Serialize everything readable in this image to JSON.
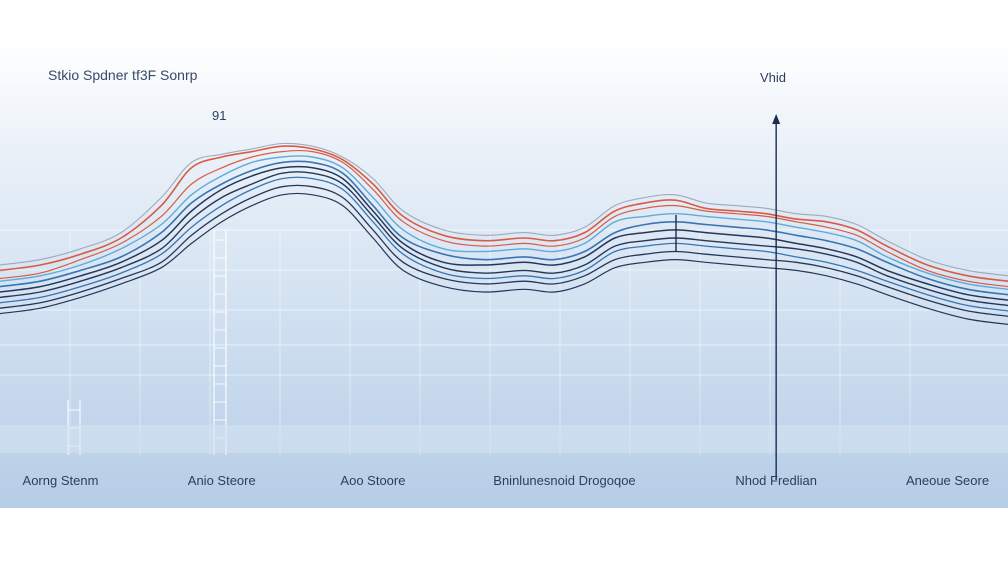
{
  "chart_data": {
    "type": "line",
    "title": "Stkio Spdner tf3F Sonrp",
    "xlabel": "",
    "ylabel": "",
    "peak_annotation": "91",
    "marker_annotation": "Vhid",
    "marker_x": 77,
    "categories": [
      {
        "label": "Aorng Stenm",
        "x": 6
      },
      {
        "label": "Anio Steore",
        "x": 22
      },
      {
        "label": "Aoo Stoore",
        "x": 37
      },
      {
        "label": "Bninlunesnoid Drogoqoe",
        "x": 56
      },
      {
        "label": "Nhod Fredlian",
        "x": 77
      },
      {
        "label": "Aneoue Seore",
        "x": 94
      }
    ],
    "xlim": [
      0,
      100
    ],
    "ylim": [
      0,
      100
    ],
    "grid": true,
    "legend": "none",
    "colors": {
      "red": "#d9533a",
      "blue": "#2f6fb0",
      "navy": "#1b2d4f",
      "light_blue": "#58a8d8",
      "gray": "#9aa6b8"
    },
    "x": [
      0,
      4,
      8,
      12,
      16,
      19,
      22,
      25,
      28,
      31,
      34,
      37,
      40,
      44,
      48,
      52,
      55,
      58,
      61,
      64,
      67,
      70,
      73,
      76,
      79,
      82,
      85,
      88,
      92,
      96,
      100
    ],
    "series": [
      {
        "color": "red",
        "width": 1.6,
        "values": [
          48,
          50,
          54,
          60,
          72,
          86,
          90,
          92,
          94,
          93,
          89,
          80,
          68,
          61,
          59,
          60,
          59,
          62,
          70,
          73,
          74,
          71,
          70,
          69,
          67,
          66,
          63,
          57,
          50,
          46,
          44
        ]
      },
      {
        "color": "red",
        "width": 1.2,
        "values": [
          45,
          47,
          52,
          58,
          68,
          80,
          86,
          90,
          92,
          92,
          88,
          78,
          66,
          59,
          57,
          58,
          57,
          60,
          68,
          71,
          72,
          70,
          69,
          68,
          66,
          64,
          61,
          55,
          48,
          44,
          42
        ]
      },
      {
        "color": "light_blue",
        "width": 1.4,
        "values": [
          44,
          46,
          50,
          56,
          65,
          76,
          83,
          88,
          90,
          90,
          86,
          75,
          63,
          56,
          55,
          56,
          55,
          58,
          66,
          68,
          69,
          68,
          67,
          66,
          64,
          62,
          59,
          53,
          47,
          43,
          41
        ]
      },
      {
        "color": "blue",
        "width": 1.6,
        "values": [
          42,
          44,
          48,
          53,
          62,
          73,
          80,
          85,
          88,
          88,
          84,
          72,
          60,
          54,
          52,
          53,
          52,
          55,
          62,
          65,
          66,
          65,
          64,
          63,
          61,
          59,
          56,
          51,
          45,
          41,
          39
        ]
      },
      {
        "color": "navy",
        "width": 1.5,
        "values": [
          40,
          42,
          46,
          51,
          59,
          70,
          78,
          83,
          86,
          86,
          82,
          70,
          58,
          51,
          50,
          51,
          50,
          53,
          60,
          62,
          63,
          62,
          61,
          60,
          58,
          56,
          53,
          48,
          43,
          39,
          37
        ]
      },
      {
        "color": "navy",
        "width": 1.4,
        "values": [
          38,
          40,
          44,
          49,
          56,
          67,
          75,
          80,
          84,
          84,
          80,
          68,
          56,
          49,
          47,
          48,
          47,
          50,
          57,
          59,
          60,
          59,
          58,
          57,
          56,
          54,
          51,
          46,
          41,
          37,
          35
        ]
      },
      {
        "color": "blue",
        "width": 1.3,
        "values": [
          36,
          38,
          42,
          47,
          54,
          64,
          72,
          78,
          82,
          82,
          78,
          66,
          54,
          47,
          45,
          46,
          45,
          48,
          55,
          57,
          58,
          57,
          56,
          55,
          53,
          51,
          48,
          44,
          39,
          35,
          33
        ]
      },
      {
        "color": "navy",
        "width": 1.3,
        "values": [
          34,
          36,
          40,
          45,
          51,
          61,
          69,
          75,
          79,
          79,
          75,
          63,
          51,
          45,
          43,
          44,
          43,
          46,
          52,
          54,
          55,
          54,
          53,
          52,
          51,
          49,
          46,
          42,
          37,
          33,
          31
        ]
      },
      {
        "color": "gray",
        "width": 1.1,
        "values": [
          50,
          52,
          56,
          62,
          75,
          88,
          91,
          93,
          95,
          94,
          90,
          82,
          70,
          63,
          61,
          62,
          61,
          64,
          72,
          75,
          76,
          73,
          72,
          71,
          69,
          68,
          65,
          59,
          52,
          48,
          46
        ]
      },
      {
        "color": "navy",
        "width": 1.2,
        "values": [
          32,
          34,
          38,
          43,
          49,
          58,
          66,
          72,
          76,
          76,
          72,
          60,
          48,
          42,
          40,
          41,
          40,
          43,
          49,
          51,
          52,
          51,
          50,
          49,
          48,
          46,
          43,
          39,
          34,
          30,
          28
        ]
      }
    ]
  }
}
